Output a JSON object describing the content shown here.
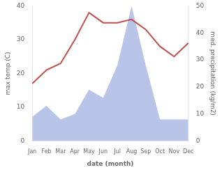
{
  "chart_data": {
    "type": "line",
    "categories": [
      "Jan",
      "Feb",
      "Mar",
      "Apr",
      "May",
      "Jun",
      "Jul",
      "Aug",
      "Sep",
      "Oct",
      "Nov",
      "Dec"
    ],
    "xlabel": "date (month)",
    "ylabel": "max temp (C)",
    "y2label": "med. precipitation (kg/m2)",
    "series": [
      {
        "type": "area",
        "color": "#b8c4e8",
        "axis": "y2",
        "values": [
          9,
          13,
          8,
          10,
          19,
          16,
          28,
          50,
          28,
          8,
          8,
          8
        ]
      },
      {
        "type": "line",
        "color": "#c0504d",
        "values": [
          17,
          21,
          23,
          30,
          38,
          35,
          35,
          36,
          33,
          28,
          25,
          29
        ]
      }
    ],
    "ylim": [
      0,
      40
    ],
    "yticks": [
      0,
      10,
      20,
      30,
      40
    ],
    "y2lim": [
      0,
      50
    ],
    "y2ticks": [
      0,
      10,
      20,
      30,
      40,
      50
    ],
    "grid": false
  }
}
